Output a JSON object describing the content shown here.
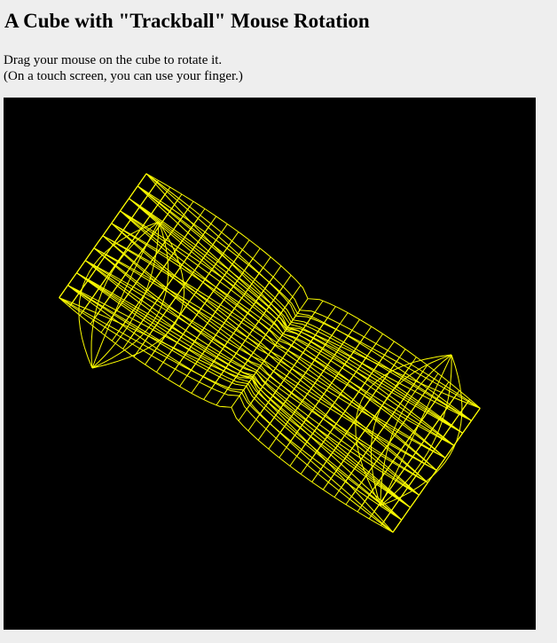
{
  "page": {
    "title": "A Cube with \"Trackball\" Mouse Rotation",
    "instructions_line1": "Drag your mouse on the cube to rotate it.",
    "instructions_line2": "(On a touch screen, you can use your finger.)"
  },
  "canvas": {
    "background_color": "#000000",
    "wire_color": "#ffff00",
    "shape": "cube-wireframe"
  },
  "colors": {
    "page_background": "#eeeeee",
    "text": "#000000"
  }
}
